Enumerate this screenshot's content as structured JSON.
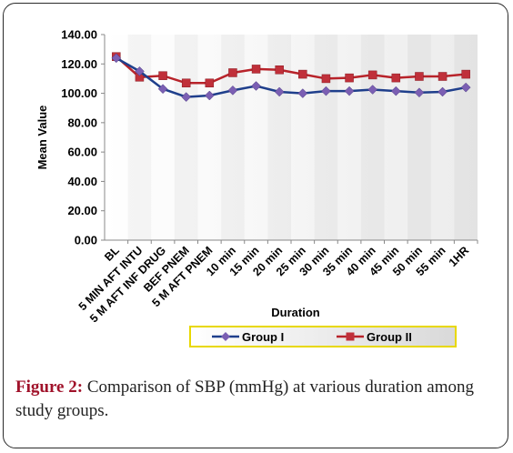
{
  "chart_data": {
    "type": "line",
    "ylabel": "Mean Value",
    "xlabel": "Duration",
    "ylim": [
      0,
      140
    ],
    "yticks": [
      "0.00",
      "20.00",
      "40.00",
      "60.00",
      "80.00",
      "100.00",
      "120.00",
      "140.00"
    ],
    "categories": [
      "BL",
      "5 MIN AFT INTU",
      "5 M AFT INF DRUG",
      "BEF PNEM",
      "5 M AFT PNEM",
      "10 min",
      "15 min",
      "20 min",
      "25 min",
      "30 min",
      "35 min",
      "40 min",
      "45 min",
      "50 min",
      "55 min",
      "1HR"
    ],
    "series": [
      {
        "name": "Group I",
        "color": "#1f3f8c",
        "marker": "diamond",
        "markerColor": "#7b5fb3",
        "values": [
          124,
          115,
          103,
          97.5,
          98.5,
          102,
          105,
          101,
          100,
          101.5,
          101.5,
          102.5,
          101.5,
          100.5,
          101,
          104
        ]
      },
      {
        "name": "Group II",
        "color": "#b8232a",
        "marker": "square",
        "markerColor": "#c0303a",
        "values": [
          125,
          111,
          112,
          107,
          107,
          114,
          116.5,
          116,
          113,
          110,
          110.5,
          112.5,
          110.5,
          111.5,
          111.5,
          113
        ]
      }
    ],
    "grid": false,
    "legend": "bottom"
  },
  "caption": {
    "label": "Figure 2:",
    "text": " Comparison of SBP (mmHg) at various duration among study groups."
  }
}
